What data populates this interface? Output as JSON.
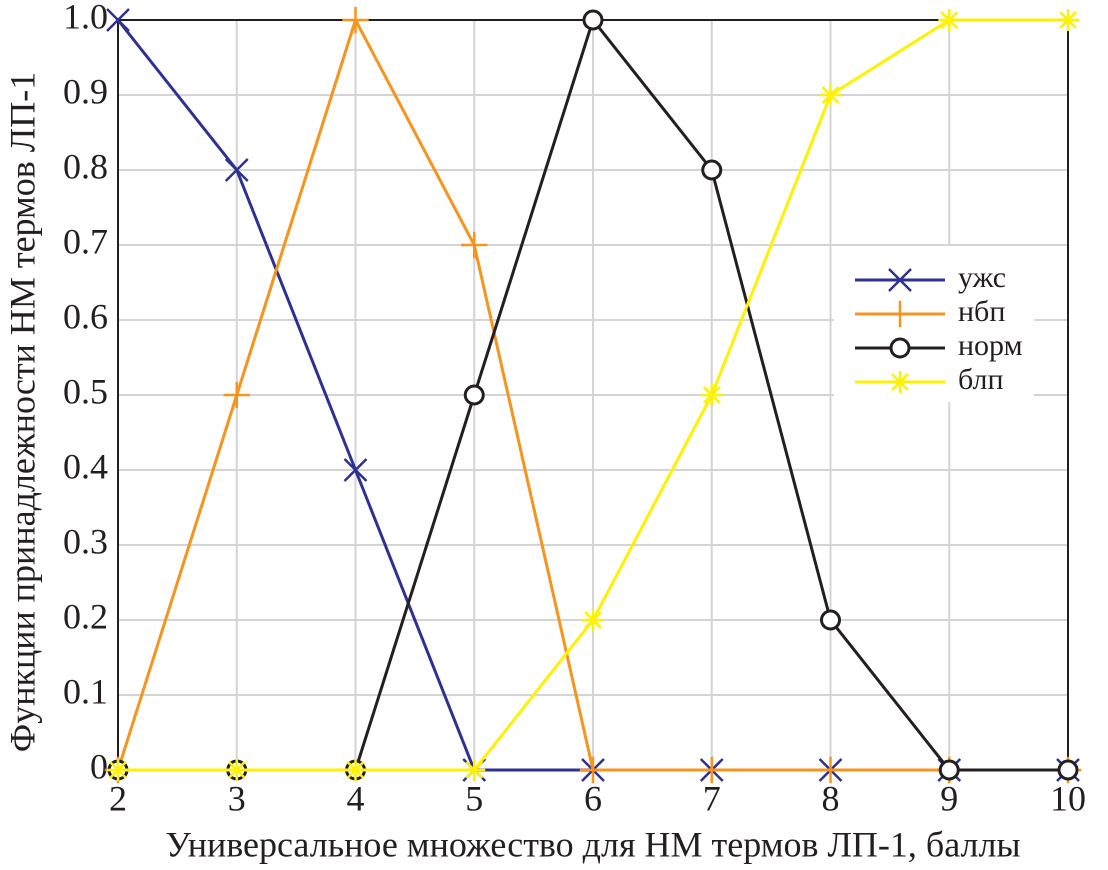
{
  "chart_data": {
    "type": "line",
    "xlabel": "Универсальное множество для НМ термов ЛП-1, баллы",
    "ylabel": "Функции принадлежности НМ термов ЛП-1",
    "x": [
      2,
      3,
      4,
      5,
      6,
      7,
      8,
      9,
      10
    ],
    "xlim": [
      2,
      10
    ],
    "xticks": [
      2,
      3,
      4,
      5,
      6,
      7,
      8,
      9,
      10
    ],
    "ylim": [
      0,
      1
    ],
    "yticks": [
      0,
      0.1,
      0.2,
      0.3,
      0.4,
      0.5,
      0.6,
      0.7,
      0.8,
      0.9,
      {
        "value": 1,
        "label": "1.0"
      }
    ],
    "grid": true,
    "legend": "right",
    "series": [
      {
        "name": "ужс",
        "color": "#2e3192",
        "marker": "x",
        "values": [
          1,
          0.8,
          0.4,
          0,
          0,
          0,
          0,
          0,
          0
        ]
      },
      {
        "name": "нбп",
        "color": "#f7941d",
        "marker": "+",
        "values": [
          0,
          0.5,
          1,
          0.7,
          0,
          0,
          0,
          0,
          0
        ]
      },
      {
        "name": "норм",
        "color": "#231f20",
        "marker": "o",
        "values": [
          0,
          0,
          0,
          0.5,
          1,
          0.8,
          0.2,
          0,
          0
        ]
      },
      {
        "name": "блп",
        "color": "#fff200",
        "marker": "*",
        "values": [
          0,
          0,
          0,
          0,
          0.2,
          0.5,
          0.9,
          1,
          1
        ]
      }
    ]
  }
}
